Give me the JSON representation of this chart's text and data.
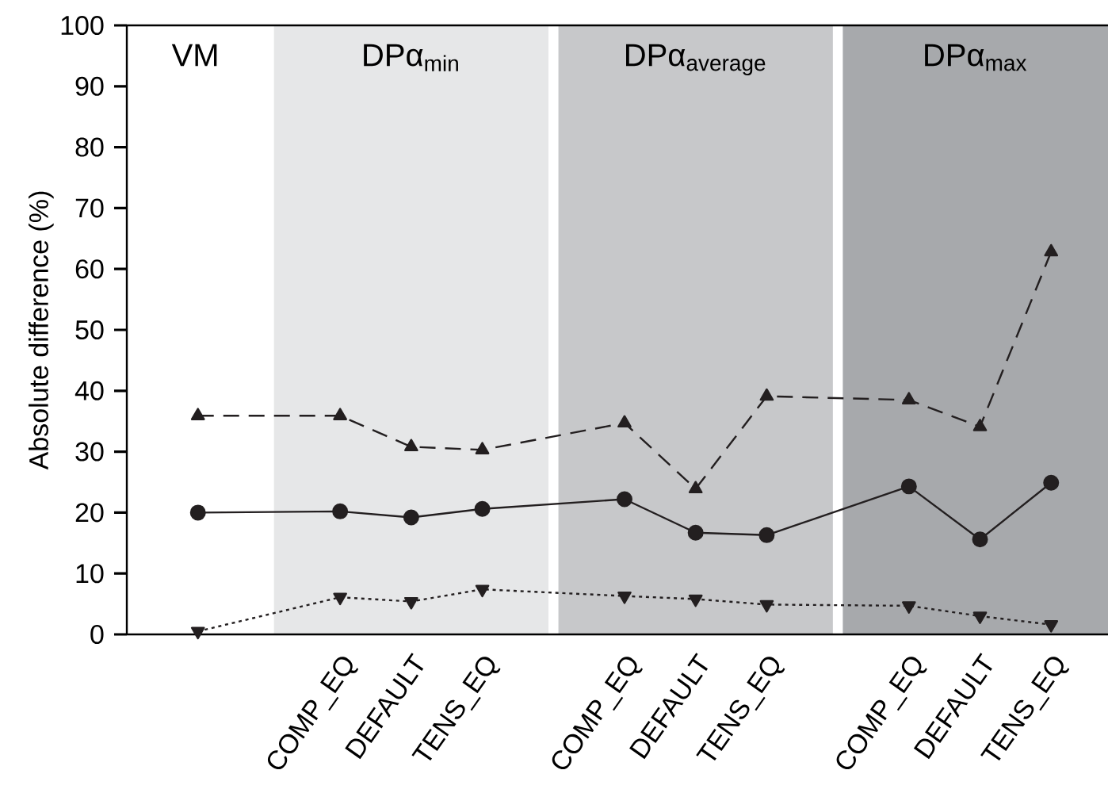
{
  "chart_data": {
    "type": "line",
    "ylabel": "Absolute difference (%)",
    "categories": [
      null,
      null,
      "COMP_EQ",
      "DEFAULT",
      "TENS_EQ",
      null,
      "COMP_EQ",
      "DEFAULT",
      "TENS_EQ",
      null,
      "COMP_EQ",
      "DEFAULT",
      "TENS_EQ"
    ],
    "series": [
      {
        "color": "#231f20",
        "marker": "circle",
        "line_style": "solid",
        "values": [
          20.0,
          null,
          20.2,
          19.2,
          20.6,
          null,
          22.2,
          16.7,
          16.3,
          null,
          24.3,
          15.6,
          24.9
        ]
      },
      {
        "color": "#231f20",
        "marker": "triangle",
        "line_style": "dashed",
        "values": [
          35.9,
          null,
          35.9,
          30.8,
          30.3,
          null,
          34.7,
          23.9,
          39.1,
          null,
          38.5,
          34.1,
          62.8
        ]
      },
      {
        "color": "#231f20",
        "marker": "triangle-down",
        "line_style": "dotted",
        "values": [
          0.5,
          null,
          6.1,
          5.4,
          7.4,
          null,
          6.3,
          5.8,
          4.9,
          null,
          4.7,
          3.0,
          1.6
        ]
      }
    ],
    "annotations": [
      "VM",
      "DPα$_{min}$",
      "DPα$_{average}$",
      "DPα$_{max}$"
    ],
    "ylim": [
      0,
      100
    ],
    "yticks": [
      0,
      10,
      20,
      30,
      40,
      50,
      60,
      70,
      80,
      90,
      100
    ]
  }
}
